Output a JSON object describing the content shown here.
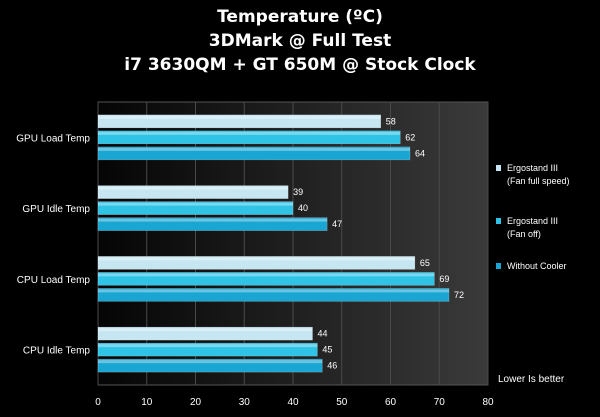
{
  "chart_data": {
    "type": "bar",
    "orientation": "horizontal",
    "title_lines": [
      "Temperature (ºC)",
      "3DMark @ Full Test",
      "i7 3630QM + GT 650M @ Stock Clock"
    ],
    "categories": [
      "GPU Load Temp",
      "GPU Idle Temp",
      "CPU Load Temp",
      "CPU Idle Temp"
    ],
    "series": [
      {
        "name": "Ergostand III (Fan full speed)",
        "legend_lines": [
          "Ergostand III",
          "(Fan full speed)"
        ],
        "color": "#c6e6f2",
        "values": [
          58,
          39,
          65,
          44
        ]
      },
      {
        "name": "Ergostand III (Fan off)",
        "legend_lines": [
          "Ergostand III",
          "(Fan off)"
        ],
        "color": "#2fc3e6",
        "values": [
          62,
          40,
          69,
          45
        ]
      },
      {
        "name": "Without Cooler",
        "legend_lines": [
          "Without Cooler"
        ],
        "color": "#1aa6d2",
        "values": [
          64,
          47,
          72,
          46
        ]
      }
    ],
    "xlim": [
      0,
      80
    ],
    "xticks": [
      0,
      10,
      20,
      30,
      40,
      50,
      60,
      70,
      80
    ],
    "grid": true,
    "legend_position": "right",
    "note": "Lower Is better"
  }
}
